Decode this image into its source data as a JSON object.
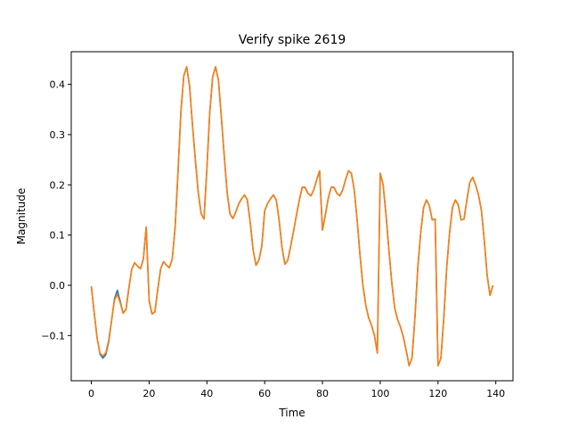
{
  "chart_data": {
    "type": "line",
    "title": "Verify spike 2619",
    "xlabel": "Time",
    "ylabel": "Magnitude",
    "xlim": [
      -6.95,
      145.95
    ],
    "ylim": [
      -0.19,
      0.465
    ],
    "xticks": [
      0,
      20,
      40,
      60,
      80,
      100,
      120,
      140
    ],
    "yticks": [
      -0.1,
      0.0,
      0.1,
      0.2,
      0.3,
      0.4
    ],
    "ytick_labels": [
      "−0.1",
      "0.0",
      "0.1",
      "0.2",
      "0.3",
      "0.4"
    ],
    "grid": false,
    "legend": "none",
    "series": [
      {
        "color": "#1f77b4",
        "y": [
          -0.002,
          -0.055,
          -0.105,
          -0.137,
          -0.145,
          -0.138,
          -0.113,
          -0.071,
          -0.027,
          -0.01,
          -0.032,
          -0.055,
          -0.048,
          -0.005,
          0.032,
          0.045,
          0.038,
          0.033,
          0.052,
          0.116,
          -0.03,
          -0.057,
          -0.053,
          -0.008,
          0.033,
          0.047,
          0.04,
          0.035,
          0.052,
          0.115,
          0.225,
          0.345,
          0.417,
          0.435,
          0.397,
          0.32,
          0.25,
          0.185,
          0.143,
          0.132,
          0.233,
          0.345,
          0.415,
          0.435,
          0.408,
          0.335,
          0.258,
          0.185,
          0.142,
          0.133,
          0.146,
          0.162,
          0.172,
          0.18,
          0.17,
          0.125,
          0.07,
          0.04,
          0.05,
          0.078,
          0.148,
          0.163,
          0.172,
          0.18,
          0.17,
          0.13,
          0.075,
          0.042,
          0.05,
          0.078,
          0.108,
          0.14,
          0.17,
          0.195,
          0.195,
          0.183,
          0.178,
          0.19,
          0.21,
          0.228,
          0.11,
          0.14,
          0.173,
          0.195,
          0.195,
          0.183,
          0.178,
          0.19,
          0.21,
          0.228,
          0.223,
          0.19,
          0.13,
          0.06,
          0.0,
          -0.04,
          -0.065,
          -0.08,
          -0.1,
          -0.135,
          0.223,
          0.2,
          0.14,
          0.07,
          0.005,
          -0.045,
          -0.068,
          -0.083,
          -0.103,
          -0.13,
          -0.16,
          -0.145,
          -0.065,
          0.035,
          0.105,
          0.155,
          0.17,
          0.158,
          0.13,
          0.132,
          -0.16,
          -0.145,
          -0.065,
          0.035,
          0.105,
          0.155,
          0.17,
          0.16,
          0.13,
          0.132,
          0.17,
          0.205,
          0.215,
          0.2,
          0.18,
          0.15,
          0.09,
          0.02,
          -0.02,
          0.0
        ]
      },
      {
        "color": "#ff7f0e",
        "y": [
          -0.002,
          -0.055,
          -0.105,
          -0.135,
          -0.141,
          -0.134,
          -0.11,
          -0.07,
          -0.03,
          -0.018,
          -0.035,
          -0.056,
          -0.048,
          -0.005,
          0.032,
          0.045,
          0.038,
          0.033,
          0.052,
          0.116,
          -0.03,
          -0.057,
          -0.053,
          -0.008,
          0.033,
          0.047,
          0.04,
          0.035,
          0.052,
          0.115,
          0.225,
          0.345,
          0.417,
          0.435,
          0.397,
          0.32,
          0.25,
          0.185,
          0.143,
          0.132,
          0.233,
          0.345,
          0.415,
          0.435,
          0.408,
          0.335,
          0.258,
          0.185,
          0.142,
          0.133,
          0.146,
          0.162,
          0.172,
          0.18,
          0.17,
          0.125,
          0.07,
          0.04,
          0.05,
          0.078,
          0.148,
          0.163,
          0.172,
          0.18,
          0.17,
          0.13,
          0.075,
          0.042,
          0.05,
          0.078,
          0.108,
          0.14,
          0.17,
          0.195,
          0.195,
          0.183,
          0.178,
          0.19,
          0.21,
          0.228,
          0.11,
          0.14,
          0.173,
          0.195,
          0.195,
          0.183,
          0.178,
          0.19,
          0.21,
          0.228,
          0.223,
          0.19,
          0.13,
          0.06,
          0.0,
          -0.04,
          -0.065,
          -0.08,
          -0.1,
          -0.135,
          0.223,
          0.2,
          0.14,
          0.07,
          0.005,
          -0.045,
          -0.068,
          -0.083,
          -0.103,
          -0.13,
          -0.16,
          -0.145,
          -0.065,
          0.035,
          0.105,
          0.155,
          0.17,
          0.158,
          0.13,
          0.132,
          -0.16,
          -0.145,
          -0.065,
          0.035,
          0.105,
          0.155,
          0.17,
          0.16,
          0.13,
          0.132,
          0.17,
          0.205,
          0.215,
          0.2,
          0.18,
          0.15,
          0.09,
          0.02,
          -0.02,
          0.0
        ]
      }
    ]
  }
}
